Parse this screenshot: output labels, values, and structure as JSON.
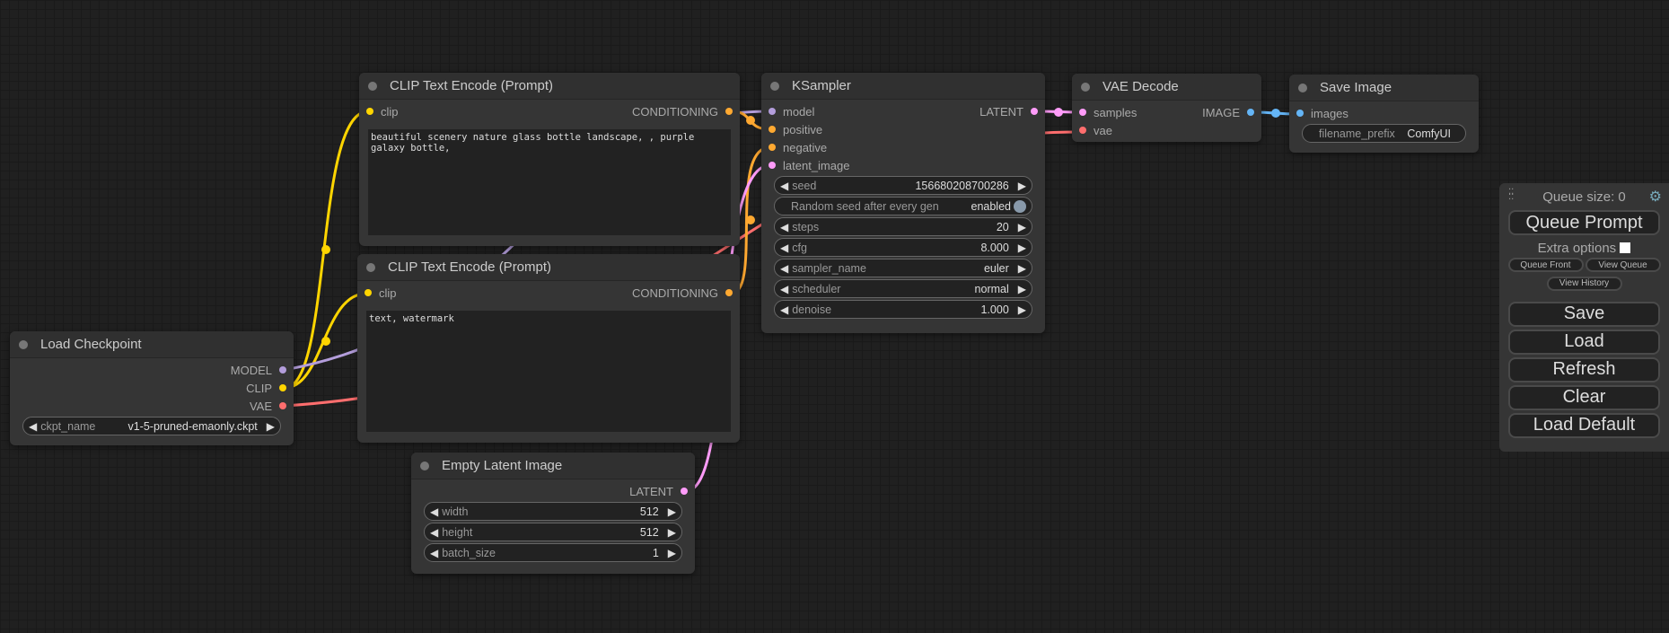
{
  "colors": {
    "clip": "#ffd500",
    "model": "#b39ddb",
    "vae": "#ff6e6e",
    "conditioning": "#ffa931",
    "latent": "#ff9cf9",
    "image": "#64b5f6"
  },
  "nodes": {
    "clip1": {
      "title": "CLIP Text Encode (Prompt)",
      "input": "clip",
      "output": "CONDITIONING",
      "text": "beautiful scenery nature glass bottle landscape, , purple galaxy bottle,"
    },
    "clip2": {
      "title": "CLIP Text Encode (Prompt)",
      "input": "clip",
      "output": "CONDITIONING",
      "text": "text, watermark"
    },
    "checkpoint": {
      "title": "Load Checkpoint",
      "outputs": [
        "MODEL",
        "CLIP",
        "VAE"
      ],
      "ckpt_label": "ckpt_name",
      "ckpt_value": "v1-5-pruned-emaonly.ckpt"
    },
    "latent": {
      "title": "Empty Latent Image",
      "output": "LATENT",
      "widgets": [
        {
          "name": "width",
          "value": "512"
        },
        {
          "name": "height",
          "value": "512"
        },
        {
          "name": "batch_size",
          "value": "1"
        }
      ]
    },
    "ksampler": {
      "title": "KSampler",
      "inputs": [
        "model",
        "positive",
        "negative",
        "latent_image"
      ],
      "output": "LATENT",
      "seed": {
        "name": "seed",
        "value": "156680208700286"
      },
      "random": {
        "label": "Random seed after every gen",
        "value": "enabled"
      },
      "widgets": [
        {
          "name": "steps",
          "value": "20"
        },
        {
          "name": "cfg",
          "value": "8.000"
        },
        {
          "name": "sampler_name",
          "value": "euler"
        },
        {
          "name": "scheduler",
          "value": "normal"
        },
        {
          "name": "denoise",
          "value": "1.000"
        }
      ]
    },
    "vae_decode": {
      "title": "VAE Decode",
      "inputs": [
        "samples",
        "vae"
      ],
      "output": "IMAGE"
    },
    "save": {
      "title": "Save Image",
      "input": "images",
      "prefix_label": "filename_prefix",
      "prefix_value": "ComfyUI"
    }
  },
  "menu": {
    "queue_size": "Queue size: 0",
    "queue_prompt": "Queue Prompt",
    "extra_options": "Extra options",
    "queue_front": "Queue Front",
    "view_queue": "View Queue",
    "view_history": "View History",
    "save": "Save",
    "load": "Load",
    "refresh": "Refresh",
    "clear": "Clear",
    "load_default": "Load Default"
  }
}
